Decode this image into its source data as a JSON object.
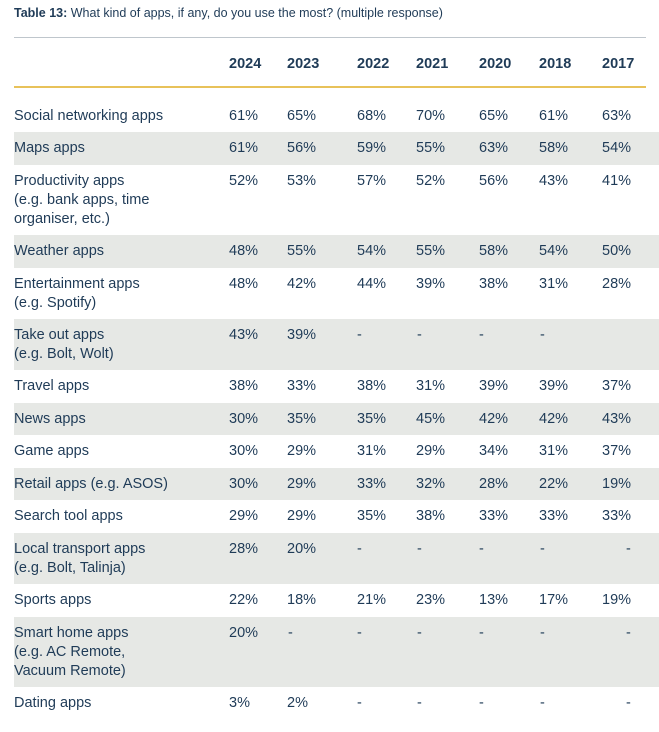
{
  "table": {
    "caption_number": "Table 13:",
    "caption_text": " What kind of apps, if any, do you use the most? (multiple response)",
    "years": [
      "2024",
      "2023",
      "2022",
      "2021",
      "2020",
      "2018",
      "2017"
    ],
    "rows": [
      {
        "label": [
          "Social networking apps"
        ],
        "values": [
          "61%",
          "65%",
          "68%",
          "70%",
          "65%",
          "61%",
          "63%"
        ]
      },
      {
        "label": [
          "Maps apps"
        ],
        "values": [
          "61%",
          "56%",
          "59%",
          "55%",
          "63%",
          "58%",
          "54%"
        ]
      },
      {
        "label": [
          "Productivity apps",
          "(e.g. bank apps, time",
          "organiser, etc.)"
        ],
        "values": [
          "52%",
          "53%",
          "57%",
          "52%",
          "56%",
          "43%",
          "41%"
        ]
      },
      {
        "label": [
          "Weather apps"
        ],
        "values": [
          "48%",
          "55%",
          "54%",
          "55%",
          "58%",
          "54%",
          "50%"
        ]
      },
      {
        "label": [
          "Entertainment apps",
          "(e.g. Spotify)"
        ],
        "values": [
          "48%",
          "42%",
          "44%",
          "39%",
          "38%",
          "31%",
          "28%"
        ]
      },
      {
        "label": [
          "Take out apps",
          "(e.g. Bolt, Wolt)"
        ],
        "values": [
          "43%",
          "39%",
          "-",
          "-",
          "-",
          "-",
          ""
        ]
      },
      {
        "label": [
          "Travel apps"
        ],
        "values": [
          "38%",
          "33%",
          "38%",
          "31%",
          "39%",
          "39%",
          "37%"
        ]
      },
      {
        "label": [
          "News apps"
        ],
        "values": [
          "30%",
          "35%",
          "35%",
          "45%",
          "42%",
          "42%",
          "43%"
        ]
      },
      {
        "label": [
          "Game apps"
        ],
        "values": [
          "30%",
          "29%",
          "31%",
          "29%",
          "34%",
          "31%",
          "37%"
        ]
      },
      {
        "label": [
          "Retail apps (e.g. ASOS)"
        ],
        "values": [
          "30%",
          "29%",
          "33%",
          "32%",
          "28%",
          "22%",
          "19%"
        ]
      },
      {
        "label": [
          "Search tool apps"
        ],
        "values": [
          "29%",
          "29%",
          "35%",
          "38%",
          "33%",
          "33%",
          "33%"
        ]
      },
      {
        "label": [
          "Local transport apps",
          "(e.g. Bolt, Talinja)"
        ],
        "values": [
          "28%",
          "20%",
          "-",
          "-",
          "-",
          "-",
          "-"
        ]
      },
      {
        "label": [
          "Sports apps"
        ],
        "values": [
          "22%",
          "18%",
          "21%",
          "23%",
          "13%",
          "17%",
          "19%"
        ]
      },
      {
        "label": [
          "Smart home apps",
          "(e.g. AC Remote,",
          "Vacuum Remote)"
        ],
        "values": [
          "20%",
          "-",
          "-",
          "-",
          "-",
          "-",
          "-"
        ]
      },
      {
        "label": [
          "Dating apps"
        ],
        "values": [
          "3%",
          "2%",
          "-",
          "-",
          "-",
          "-",
          "-"
        ]
      }
    ]
  }
}
